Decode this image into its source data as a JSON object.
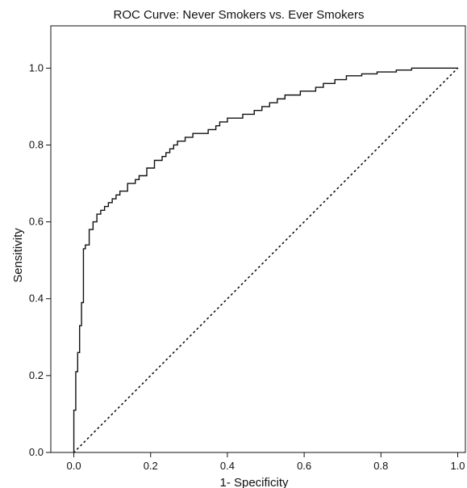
{
  "chart_data": {
    "type": "line",
    "title": "ROC Curve: Never Smokers vs. Ever Smokers",
    "xlabel": "1- Specificity",
    "ylabel": "Sensitivity",
    "xlim": [
      -0.06,
      1.02
    ],
    "ylim": [
      0.0,
      1.11
    ],
    "xticks": [
      "0.0",
      "0.2",
      "0.4",
      "0.6",
      "0.8",
      "1.0"
    ],
    "yticks": [
      "0.0",
      "0.2",
      "0.4",
      "0.6",
      "0.8",
      "1.0"
    ],
    "grid": false,
    "legend": "none",
    "series": [
      {
        "style": "solid",
        "color": "#111111",
        "x": [
          0.0,
          0.0,
          0.005,
          0.005,
          0.01,
          0.01,
          0.015,
          0.015,
          0.02,
          0.02,
          0.025,
          0.025,
          0.03,
          0.03,
          0.04,
          0.04,
          0.05,
          0.05,
          0.06,
          0.06,
          0.07,
          0.07,
          0.08,
          0.08,
          0.09,
          0.09,
          0.1,
          0.1,
          0.11,
          0.11,
          0.12,
          0.12,
          0.14,
          0.14,
          0.16,
          0.16,
          0.17,
          0.17,
          0.19,
          0.19,
          0.21,
          0.21,
          0.23,
          0.23,
          0.24,
          0.24,
          0.25,
          0.25,
          0.26,
          0.26,
          0.27,
          0.27,
          0.29,
          0.29,
          0.31,
          0.31,
          0.35,
          0.35,
          0.37,
          0.37,
          0.38,
          0.38,
          0.39,
          0.39,
          0.4,
          0.4,
          0.44,
          0.44,
          0.47,
          0.47,
          0.49,
          0.49,
          0.51,
          0.51,
          0.53,
          0.53,
          0.55,
          0.55,
          0.59,
          0.59,
          0.63,
          0.63,
          0.65,
          0.65,
          0.68,
          0.68,
          0.71,
          0.71,
          0.75,
          0.75,
          0.79,
          0.79,
          0.84,
          0.84,
          0.88,
          0.88,
          0.92,
          0.92,
          0.96,
          0.96,
          1.0
        ],
        "y": [
          0.0,
          0.11,
          0.11,
          0.21,
          0.21,
          0.26,
          0.26,
          0.33,
          0.33,
          0.39,
          0.39,
          0.53,
          0.53,
          0.54,
          0.54,
          0.58,
          0.58,
          0.6,
          0.6,
          0.62,
          0.62,
          0.63,
          0.63,
          0.64,
          0.64,
          0.65,
          0.65,
          0.66,
          0.66,
          0.67,
          0.67,
          0.68,
          0.68,
          0.7,
          0.7,
          0.71,
          0.71,
          0.72,
          0.72,
          0.74,
          0.74,
          0.76,
          0.76,
          0.77,
          0.77,
          0.78,
          0.78,
          0.79,
          0.79,
          0.8,
          0.8,
          0.81,
          0.81,
          0.82,
          0.82,
          0.83,
          0.83,
          0.84,
          0.84,
          0.85,
          0.85,
          0.86,
          0.86,
          0.86,
          0.86,
          0.87,
          0.87,
          0.88,
          0.88,
          0.89,
          0.89,
          0.9,
          0.9,
          0.91,
          0.91,
          0.92,
          0.92,
          0.93,
          0.93,
          0.94,
          0.94,
          0.95,
          0.95,
          0.96,
          0.96,
          0.97,
          0.97,
          0.98,
          0.98,
          0.985,
          0.985,
          0.99,
          0.99,
          0.995,
          0.995,
          1.0,
          1.0,
          1.0,
          1.0,
          1.0,
          1.0
        ]
      },
      {
        "style": "dotted",
        "color": "#111111",
        "x": [
          0.0,
          1.0
        ],
        "y": [
          0.0,
          1.0
        ]
      }
    ]
  }
}
